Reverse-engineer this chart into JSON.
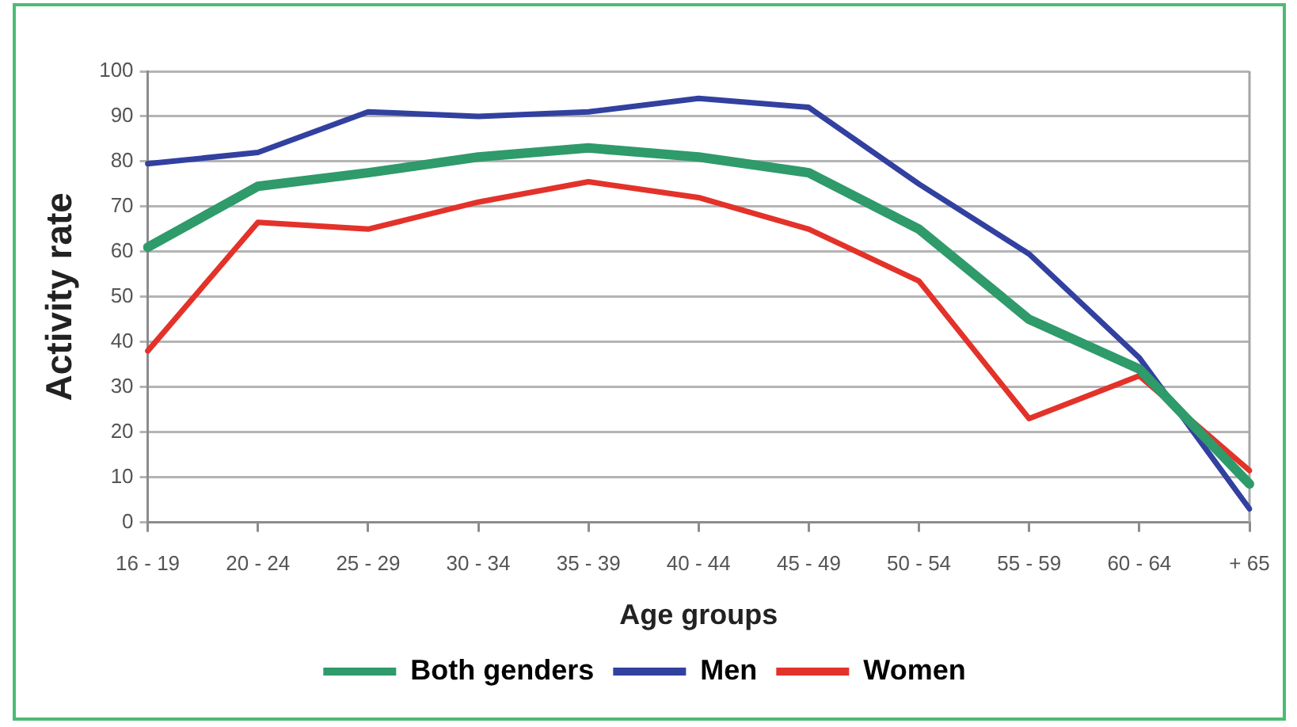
{
  "chart_data": {
    "type": "line",
    "xlabel": "Age groups",
    "ylabel": "Activity rate",
    "categories": [
      "16 - 19",
      "20 - 24",
      "25 - 29",
      "30 - 34",
      "35 - 39",
      "40 - 44",
      "45 - 49",
      "50 - 54",
      "55 - 59",
      "60 - 64",
      "+ 65"
    ],
    "series": [
      {
        "name": "Both genders",
        "color": "#2f9a6a",
        "values": [
          61,
          74.5,
          77.5,
          81,
          83,
          81,
          77.5,
          65,
          45,
          34,
          8.5
        ]
      },
      {
        "name": "Men",
        "color": "#3240a0",
        "values": [
          79.5,
          82,
          91,
          90,
          91,
          94,
          92,
          75,
          59.5,
          36.5,
          3
        ]
      },
      {
        "name": "Women",
        "color": "#e3322a",
        "values": [
          38,
          66.5,
          65,
          71,
          75.5,
          72,
          65,
          53.5,
          23,
          32.5,
          11.5
        ]
      }
    ],
    "ylim": [
      0,
      100
    ],
    "yticks": [
      0,
      10,
      20,
      30,
      40,
      50,
      60,
      70,
      80,
      90,
      100
    ],
    "grid": "y",
    "legend": "bottom",
    "marker": "none",
    "line_style": "solid"
  }
}
